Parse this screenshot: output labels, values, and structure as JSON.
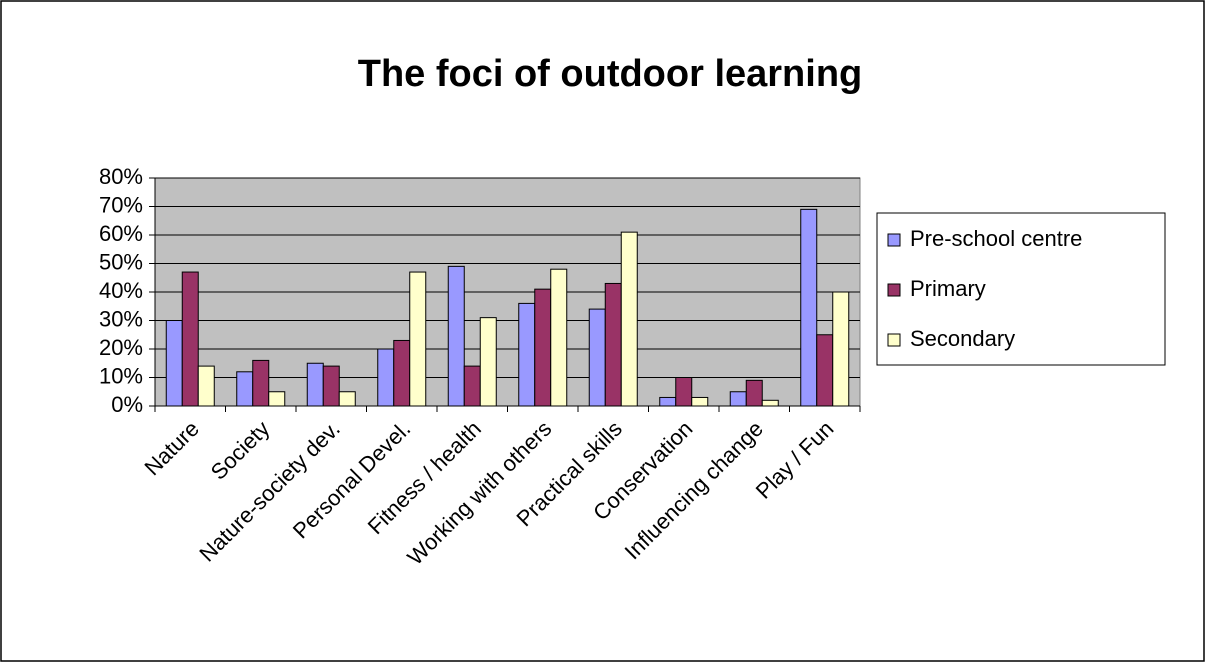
{
  "chart_data": {
    "type": "bar",
    "title": "The foci of outdoor learning",
    "categories": [
      "Nature",
      "Society",
      "Nature-society dev.",
      "Personal Devel.",
      "Fitness / health",
      "Working with others",
      "Practical skills",
      "Conservation",
      "Influencing change",
      "Play / Fun"
    ],
    "series": [
      {
        "name": "Pre-school centre",
        "color": "#9999ff",
        "values": [
          30,
          12,
          15,
          20,
          49,
          36,
          34,
          3,
          5,
          69
        ]
      },
      {
        "name": "Primary",
        "color": "#993366",
        "values": [
          47,
          16,
          14,
          23,
          14,
          41,
          43,
          10,
          9,
          25
        ]
      },
      {
        "name": "Secondary",
        "color": "#ffffcc",
        "values": [
          14,
          5,
          5,
          47,
          31,
          48,
          61,
          3,
          2,
          40
        ]
      }
    ],
    "ylim": [
      0,
      80
    ],
    "yticks": [
      {
        "value": 0,
        "label": "0%"
      },
      {
        "value": 10,
        "label": "10%"
      },
      {
        "value": 20,
        "label": "20%"
      },
      {
        "value": 30,
        "label": "30%"
      },
      {
        "value": 40,
        "label": "40%"
      },
      {
        "value": 50,
        "label": "50%"
      },
      {
        "value": 60,
        "label": "60%"
      },
      {
        "value": 70,
        "label": "70%"
      },
      {
        "value": 80,
        "label": "80%"
      }
    ],
    "grid": true,
    "legend": "right"
  }
}
